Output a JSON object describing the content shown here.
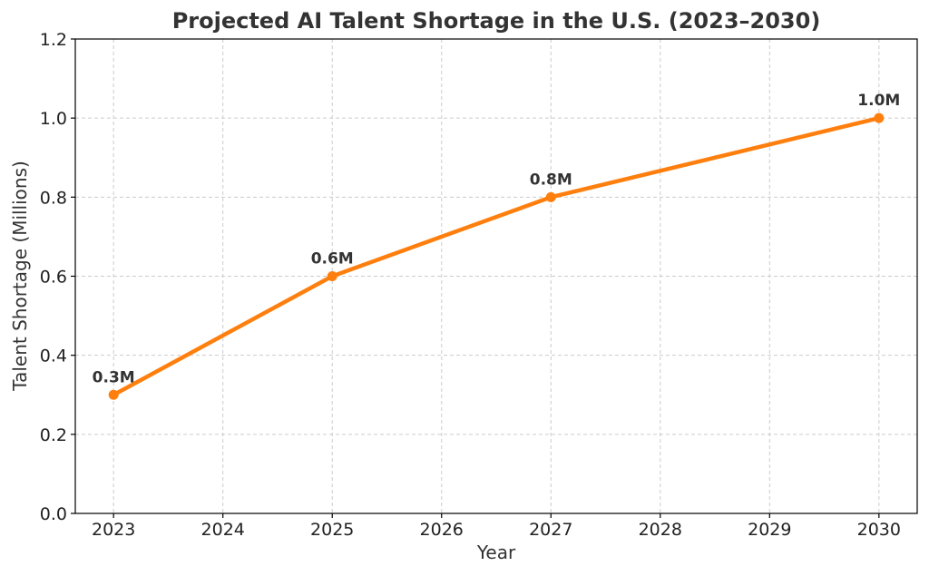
{
  "chart_data": {
    "type": "line",
    "title": "Projected AI Talent Shortage in the U.S. (2023–2030)",
    "xlabel": "Year",
    "ylabel": "Talent Shortage (Millions)",
    "x": [
      2023,
      2025,
      2027,
      2030
    ],
    "xlim": [
      2022.65,
      2030.35
    ],
    "xticks": [
      2023,
      2024,
      2025,
      2026,
      2027,
      2028,
      2029,
      2030
    ],
    "ylim": [
      0,
      1.2
    ],
    "yticks": [
      0.0,
      0.2,
      0.4,
      0.6,
      0.8,
      1.0,
      1.2
    ],
    "ytick_labels": [
      "0.0",
      "0.2",
      "0.4",
      "0.6",
      "0.8",
      "1.0",
      "1.2"
    ],
    "grid": true,
    "series": [
      {
        "name": "Talent Shortage",
        "values": [
          0.3,
          0.6,
          0.8,
          1.0
        ],
        "labels": [
          "0.3M",
          "0.6M",
          "0.8M",
          "1.0M"
        ],
        "color": "#ff7f0e"
      }
    ]
  }
}
